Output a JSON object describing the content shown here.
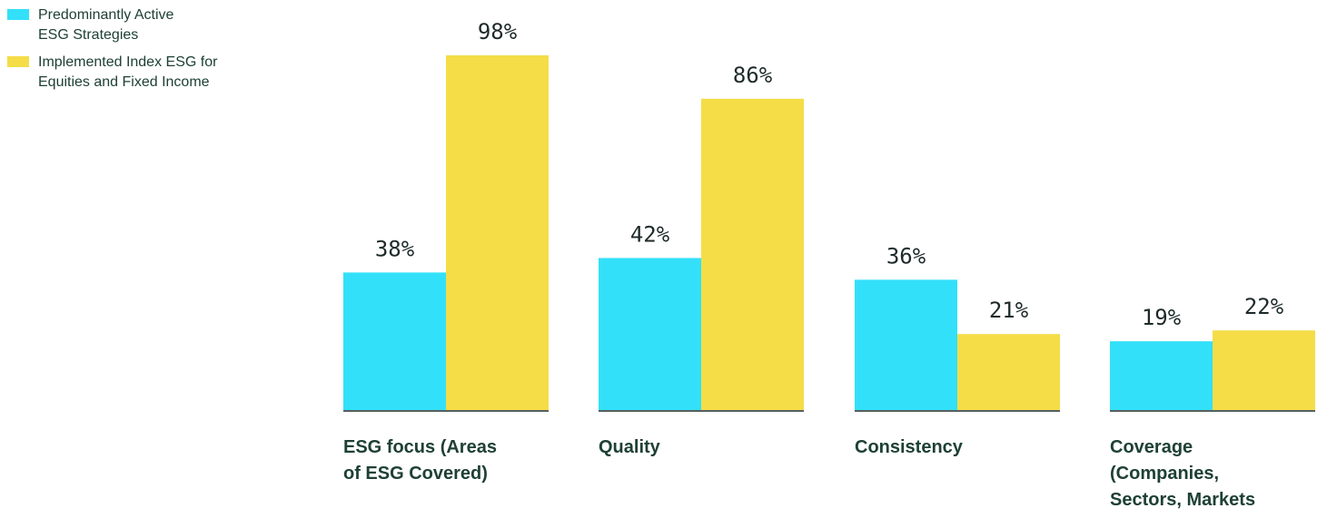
{
  "legend": {
    "items": [
      {
        "lines": [
          "Predominantly Active",
          "ESG Strategies"
        ],
        "color": "#33e0fa"
      },
      {
        "lines": [
          "Implemented Index ESG for",
          "Equities and Fixed Income"
        ],
        "color": "#f4dd47"
      }
    ]
  },
  "chart_data": {
    "type": "bar",
    "unit": "%",
    "categories": [
      [
        "ESG focus (Areas",
        "of ESG Covered)"
      ],
      [
        "Quality"
      ],
      [
        "Consistency"
      ],
      [
        "Coverage",
        "(Companies,",
        "Sectors, Markets"
      ]
    ],
    "series": [
      {
        "name": "Predominantly Active ESG Strategies",
        "values": [
          38,
          42,
          36,
          19
        ],
        "color": "#33e0fa"
      },
      {
        "name": "Implemented Index ESG for Equities and Fixed Income",
        "values": [
          98,
          86,
          21,
          22
        ],
        "color": "#f4dd47"
      }
    ],
    "value_labels": [
      [
        "38%",
        "42%",
        "36%",
        "19%"
      ],
      [
        "98%",
        "86%",
        "21%",
        "22%"
      ]
    ],
    "ylim": [
      0,
      100
    ],
    "grid": false,
    "legend_position": "top-left",
    "baseline_color": "#1e2a2a"
  }
}
